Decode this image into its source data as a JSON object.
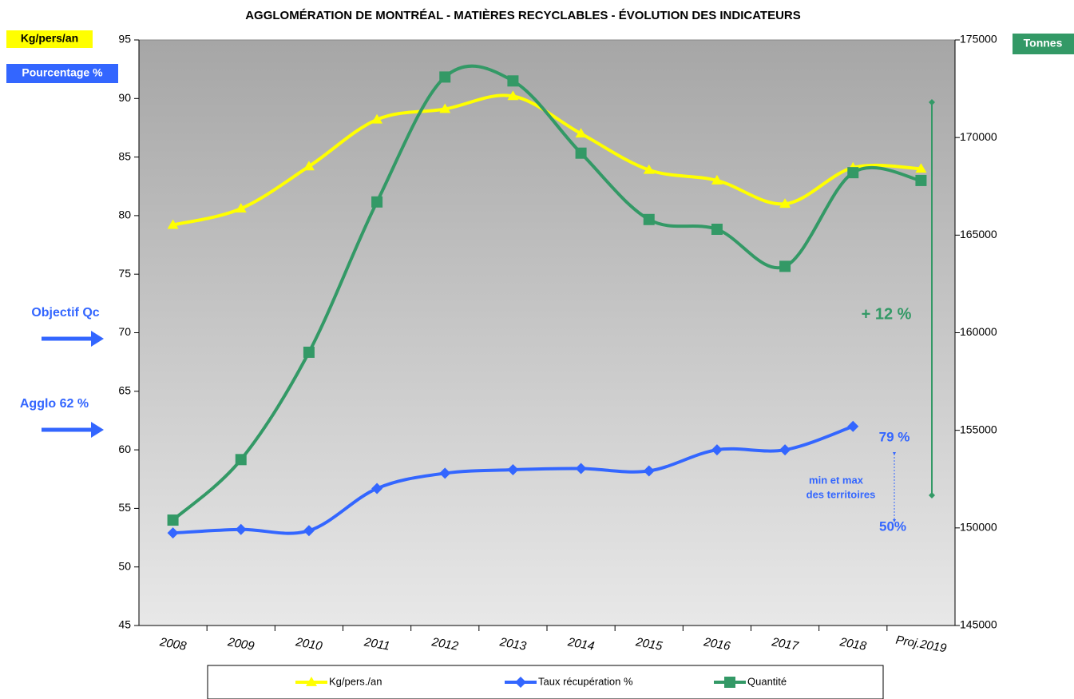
{
  "chart_data": {
    "type": "line",
    "title": "AGGLOMÉRATION DE MONTRÉAL - MATIÈRES RECYCLABLES - ÉVOLUTION DES INDICATEURS",
    "ylabel": "Kg/pers/an",
    "ylabel_secondary": "Pourcentage %",
    "y2label": "Tonnes",
    "categories": [
      "2008",
      "2009",
      "2010",
      "2011",
      "2012",
      "2013",
      "2014",
      "2015",
      "2016",
      "2017",
      "2018",
      "Proj.2019"
    ],
    "series": [
      {
        "name": "Kg/pers./an",
        "color": "#ffff00",
        "marker": "triangle",
        "values": [
          79.2,
          80.6,
          84.2,
          88.2,
          89.1,
          90.2,
          87.0,
          83.9,
          83.0,
          81.0,
          84.1,
          84.0
        ]
      },
      {
        "name": "Taux récupération %",
        "color": "#3366ff",
        "marker": "diamond",
        "values": [
          52.9,
          53.2,
          53.1,
          56.7,
          58.0,
          58.3,
          58.4,
          58.2,
          60.0,
          60.0,
          62.0,
          null
        ]
      },
      {
        "name": "Quantité",
        "color": "#339966",
        "marker": "square",
        "axis": "y2",
        "values": [
          150400,
          153500,
          159000,
          166700,
          173100,
          172900,
          169200,
          165800,
          165300,
          163400,
          168200,
          167800
        ]
      }
    ],
    "ylim": [
      45,
      95
    ],
    "yticks": [
      45,
      50,
      55,
      60,
      65,
      70,
      75,
      80,
      85,
      90,
      95
    ],
    "y2lim": [
      145000,
      175000
    ],
    "y2ticks": [
      145000,
      150000,
      155000,
      160000,
      165000,
      170000,
      175000
    ],
    "annotations": [
      "Objectif Qc",
      "Agglo 62 %",
      "+ 12 %",
      "79 %",
      "min et max",
      "des territoires",
      "50%"
    ],
    "legend": "bottom"
  }
}
